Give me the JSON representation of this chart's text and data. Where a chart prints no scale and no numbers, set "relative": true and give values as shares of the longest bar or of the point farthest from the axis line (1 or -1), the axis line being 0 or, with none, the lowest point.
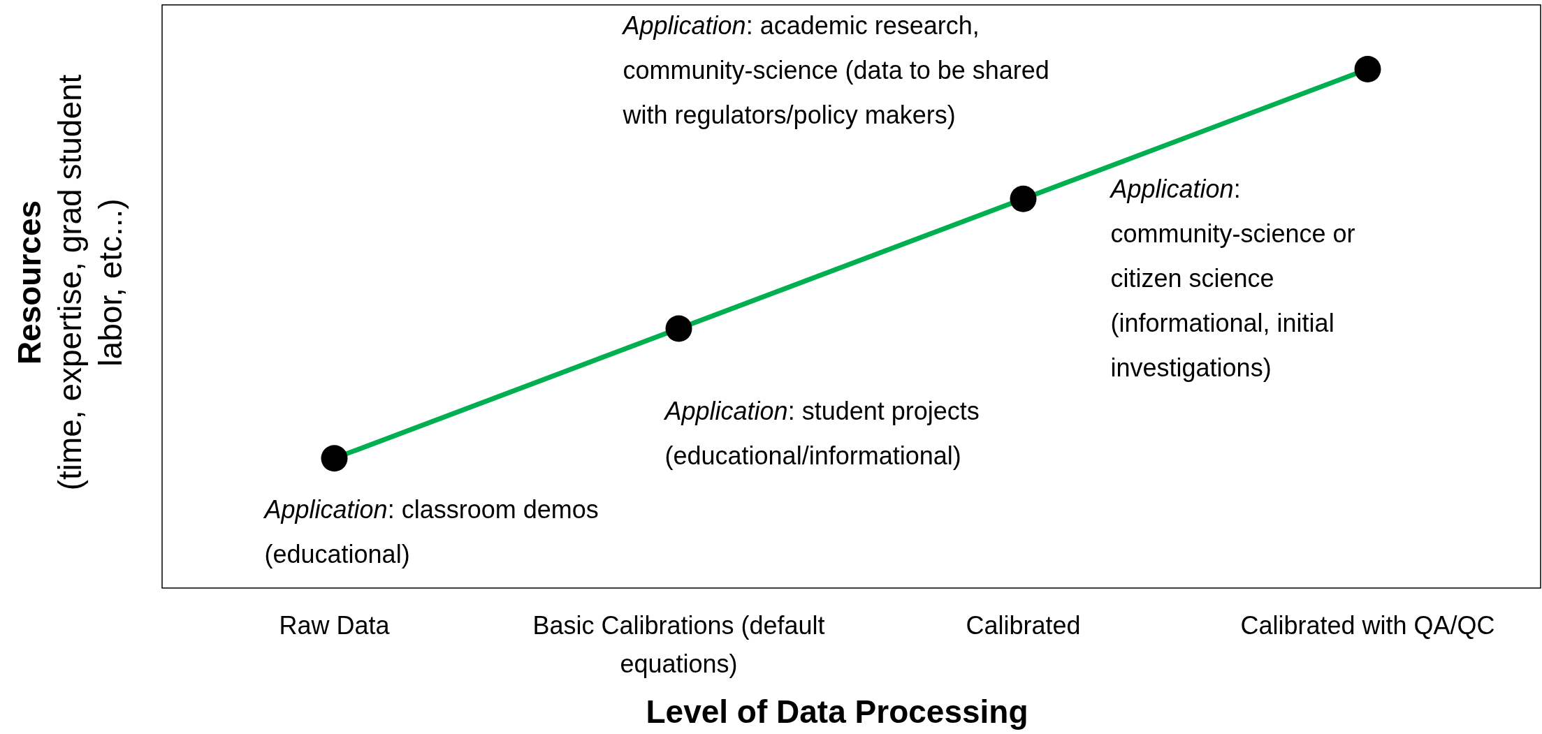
{
  "chart_data": {
    "type": "line",
    "categories": [
      "Raw Data",
      "Basic Calibrations (default equations)",
      "Calibrated",
      "Calibrated with QA/QC"
    ],
    "series": [
      {
        "color": "#00b050",
        "values": [
          0.25,
          0.5,
          0.75,
          1
        ]
      }
    ],
    "relative": true,
    "marker": "circle",
    "line_style": "solid",
    "grid": false,
    "xlabel": "Level of Data Processing",
    "ylabel": "Resources\n(time, expertise, grad student\nlabor, etc...)",
    "annotations": [
      "Application: classroom demos\n(educational)",
      "Application: student projects\n(educational/informational)",
      "Application:\ncommunity-science  or\ncitizen science\n(informational, initial\ninvestigations)",
      "Application: academic research,\ncommunity-science (data to be shared\nwith regulators/policy makers)"
    ]
  }
}
